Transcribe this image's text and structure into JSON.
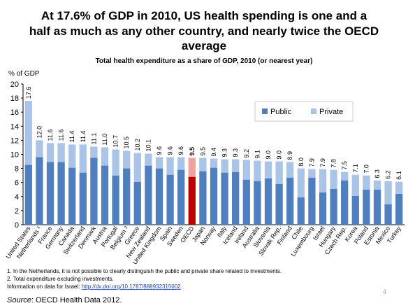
{
  "chart_data": {
    "type": "stacked_bar",
    "title": [
      "At 17.6% of GDP in 2010, US health spending is one and a",
      "half as much as any other country, and nearly twice the OECD",
      "average"
    ],
    "subtitle": "Total health expenditure as a share of GDP, 2010 (or nearest year)",
    "y_label": "% of GDP",
    "categories": [
      "United States",
      "Netherlands ¹",
      "France",
      "Germany",
      "Canada",
      "Switzerland",
      "Denmark",
      "Austria",
      "Portugal",
      "Belgium ²",
      "Greece",
      "New Zealand",
      "United Kingdom",
      "Spain",
      "Sweden",
      "OECD",
      "Japan",
      "Norway",
      "Italy",
      "Iceland",
      "Ireland",
      "Australia",
      "Slovenia",
      "Slovak Rep.",
      "Finland",
      "Chile",
      "Luxembourg",
      "Israel",
      "Hungary",
      "Czech Rep.",
      "Korea",
      "Poland",
      "Estonia",
      "Mexico",
      "Turkey"
    ],
    "series": [
      {
        "name": "Public",
        "color": "#4f7fbf",
        "values": [
          8.5,
          9.6,
          8.9,
          8.9,
          8.1,
          7.4,
          9.5,
          8.4,
          7.0,
          8.0,
          6.1,
          8.4,
          8.0,
          7.1,
          7.8,
          6.8,
          7.6,
          8.1,
          7.4,
          7.5,
          6.4,
          6.2,
          6.6,
          5.8,
          6.7,
          3.9,
          6.7,
          4.6,
          5.1,
          6.3,
          4.1,
          5.0,
          5.0,
          2.9,
          4.4
        ]
      },
      {
        "name": "Private",
        "color": "#a9c4e6",
        "values": [
          9.1,
          2.4,
          2.7,
          2.7,
          3.3,
          4.0,
          1.6,
          2.6,
          3.7,
          2.5,
          4.1,
          1.7,
          1.6,
          2.5,
          1.8,
          2.7,
          1.9,
          1.3,
          1.9,
          1.8,
          2.8,
          2.9,
          2.4,
          3.2,
          2.2,
          4.1,
          1.2,
          3.3,
          2.7,
          1.2,
          3.0,
          2.0,
          1.3,
          3.3,
          1.7
        ]
      }
    ],
    "value_labels": [
      "17.6",
      "12.0",
      "11.6",
      "11.6",
      "11.4",
      "11.4",
      "11.1",
      "11.0",
      "10.7",
      "10.5",
      "10.2",
      "10.1",
      "9.6",
      "9.6",
      "9.6",
      "9.5",
      "9.5",
      "9.4",
      "9.3",
      "9.3",
      "9.2",
      "9.1",
      "9.0",
      "9.0",
      "8.9",
      "8.0",
      "7.9",
      "7.9",
      "7.8",
      "7.5",
      "7.1",
      "7.0",
      "6.3",
      "6.2",
      "6.1"
    ],
    "highlight": "OECD",
    "highlight_colors": [
      "#c00000",
      "#f2a0a0"
    ],
    "ylim": [
      0,
      20
    ],
    "yticks": [
      0,
      2,
      4,
      6,
      8,
      10,
      12,
      14,
      16,
      18,
      20
    ],
    "grid": false,
    "legend": "upper right",
    "notes": [
      "1. In the Netherlands, it is not possible to clearly distinguish the public and private share related to investments.",
      "2. Total expenditure excluding investments."
    ],
    "israel_note": "Information on data for Israel: ",
    "israel_link": "http://dx.doi.org/10.1787/888932315602",
    "israel_end": ".",
    "source_label": "Source",
    "source_text": ": OECD Health Data 2012.",
    "page_number": "4"
  }
}
